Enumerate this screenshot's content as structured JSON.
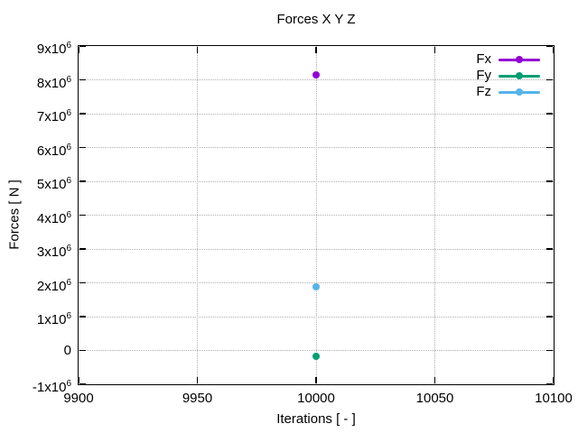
{
  "chart_data": {
    "type": "scatter",
    "title": "Forces X Y Z",
    "xlabel": "Iterations [ - ]",
    "ylabel": "Forces [ N ]",
    "xlim": [
      9900,
      10100
    ],
    "ylim": [
      -1000000,
      9000000
    ],
    "xticks": [
      9900,
      9950,
      10000,
      10050,
      10100
    ],
    "xtick_labels": [
      "9900",
      "9950",
      "10000",
      "10050",
      "10100"
    ],
    "yticks": [
      -1000000,
      0,
      1000000,
      2000000,
      3000000,
      4000000,
      5000000,
      6000000,
      7000000,
      8000000,
      9000000
    ],
    "ytick_labels": [
      "-1x10^6",
      "0",
      "1x10^6",
      "2x10^6",
      "3x10^6",
      "4x10^6",
      "5x10^6",
      "6x10^6",
      "7x10^6",
      "8x10^6",
      "9x10^6"
    ],
    "grid": true,
    "grid_style": "dotted",
    "grid_color": "#b0b0b0",
    "border_color": "#000000",
    "background_color": "#ffffff",
    "legend_position": "top-right-inside",
    "marker": "filled-circle",
    "marker_size_px": 8,
    "series": [
      {
        "name": "Fx",
        "color": "#9400d3",
        "x": [
          10000
        ],
        "y": [
          8150000
        ]
      },
      {
        "name": "Fy",
        "color": "#009e73",
        "x": [
          10000
        ],
        "y": [
          -160000
        ]
      },
      {
        "name": "Fz",
        "color": "#56b4e9",
        "x": [
          10000
        ],
        "y": [
          1880000
        ]
      }
    ]
  }
}
